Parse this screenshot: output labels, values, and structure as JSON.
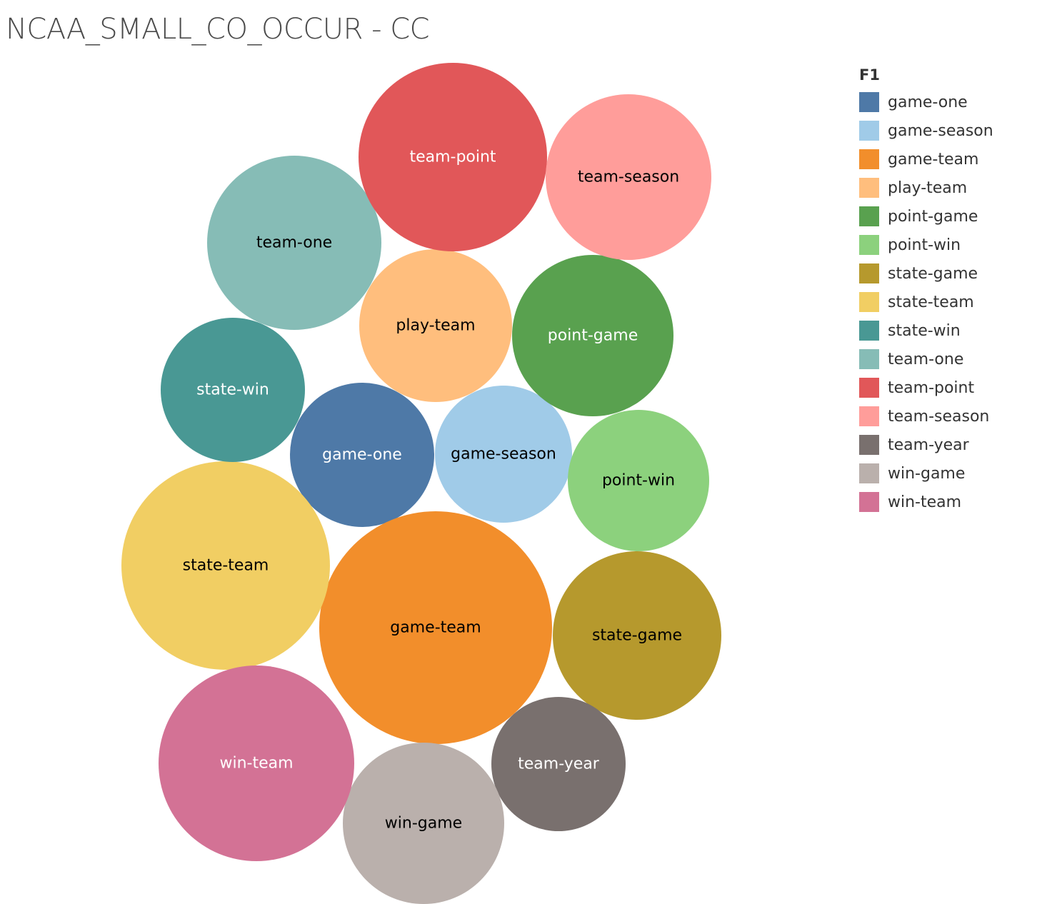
{
  "title": "NCAA_SMALL_CO_OCCUR - CC",
  "chart_data": {
    "type": "bubble",
    "legend_title": "F1",
    "legend_placement": "top-right",
    "series": [
      {
        "name": "game-one",
        "color": "#4e79a7",
        "label_color": "#ffffff"
      },
      {
        "name": "game-season",
        "color": "#a0cbe8",
        "label_color": "#000000"
      },
      {
        "name": "game-team",
        "color": "#f28e2b",
        "label_color": "#000000"
      },
      {
        "name": "play-team",
        "color": "#ffbe7d",
        "label_color": "#000000"
      },
      {
        "name": "point-game",
        "color": "#59a14f",
        "label_color": "#ffffff"
      },
      {
        "name": "point-win",
        "color": "#8cd17d",
        "label_color": "#000000"
      },
      {
        "name": "state-game",
        "color": "#b6992d",
        "label_color": "#000000"
      },
      {
        "name": "state-team",
        "color": "#f1ce63",
        "label_color": "#000000"
      },
      {
        "name": "state-win",
        "color": "#499894",
        "label_color": "#ffffff"
      },
      {
        "name": "team-one",
        "color": "#86bcb6",
        "label_color": "#000000"
      },
      {
        "name": "team-point",
        "color": "#e15759",
        "label_color": "#ffffff"
      },
      {
        "name": "team-season",
        "color": "#ff9d9a",
        "label_color": "#000000"
      },
      {
        "name": "team-year",
        "color": "#79706e",
        "label_color": "#ffffff"
      },
      {
        "name": "win-game",
        "color": "#bab0ac",
        "label_color": "#000000"
      },
      {
        "name": "win-team",
        "color": "#d37295",
        "label_color": "#ffffff"
      }
    ]
  }
}
